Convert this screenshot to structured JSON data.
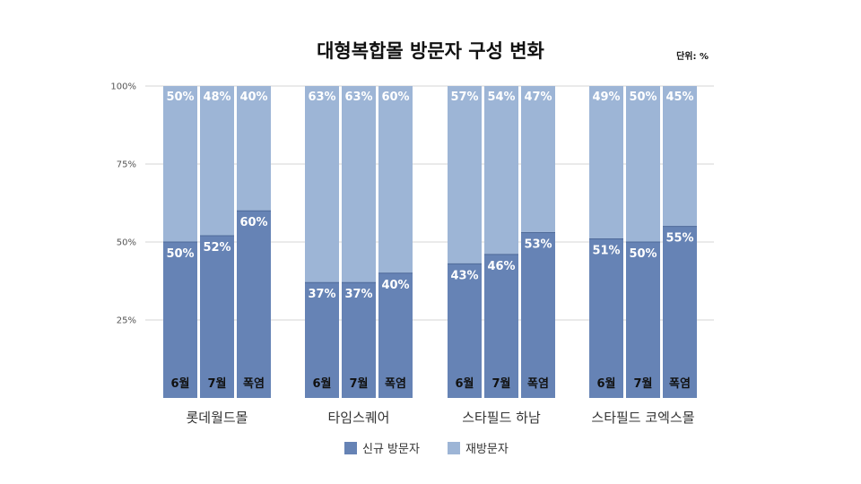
{
  "chart_data": {
    "type": "bar",
    "stacked": true,
    "percent_stacked": true,
    "title": "대형복합몰 방문자 구성 변화",
    "unit_note": "단위: %",
    "y_ticks": [
      "100%",
      "75%",
      "50%",
      "25%"
    ],
    "ylim": [
      0,
      100
    ],
    "grid": true,
    "legend_position": "bottom",
    "groups": [
      {
        "label": "롯데월드몰",
        "bars": [
          {
            "label": "6월",
            "new": 50,
            "new_label": "50%",
            "ret": 50,
            "ret_label": "50%"
          },
          {
            "label": "7월",
            "new": 52,
            "new_label": "52%",
            "ret": 48,
            "ret_label": "48%"
          },
          {
            "label": "폭염",
            "new": 60,
            "new_label": "60%",
            "ret": 40,
            "ret_label": "40%"
          }
        ]
      },
      {
        "label": "타임스퀘어",
        "bars": [
          {
            "label": "6월",
            "new": 37,
            "new_label": "37%",
            "ret": 63,
            "ret_label": "63%"
          },
          {
            "label": "7월",
            "new": 37,
            "new_label": "37%",
            "ret": 63,
            "ret_label": "63%"
          },
          {
            "label": "폭염",
            "new": 40,
            "new_label": "40%",
            "ret": 60,
            "ret_label": "60%"
          }
        ]
      },
      {
        "label": "스타필드 하남",
        "bars": [
          {
            "label": "6월",
            "new": 43,
            "new_label": "43%",
            "ret": 57,
            "ret_label": "57%"
          },
          {
            "label": "7월",
            "new": 46,
            "new_label": "46%",
            "ret": 54,
            "ret_label": "54%"
          },
          {
            "label": "폭염",
            "new": 53,
            "new_label": "53%",
            "ret": 47,
            "ret_label": "47%"
          }
        ]
      },
      {
        "label": "스타필드 코엑스몰",
        "bars": [
          {
            "label": "6월",
            "new": 51,
            "new_label": "51%",
            "ret": 49,
            "ret_label": "49%"
          },
          {
            "label": "7월",
            "new": 50,
            "new_label": "50%",
            "ret": 50,
            "ret_label": "50%"
          },
          {
            "label": "폭염",
            "new": 55,
            "new_label": "55%",
            "ret": 45,
            "ret_label": "45%"
          }
        ]
      }
    ],
    "series": [
      {
        "name": "신규 방문자",
        "key": "new",
        "color": "#6683b5"
      },
      {
        "name": "재방문자",
        "key": "ret",
        "color": "#9db5d6"
      }
    ]
  }
}
